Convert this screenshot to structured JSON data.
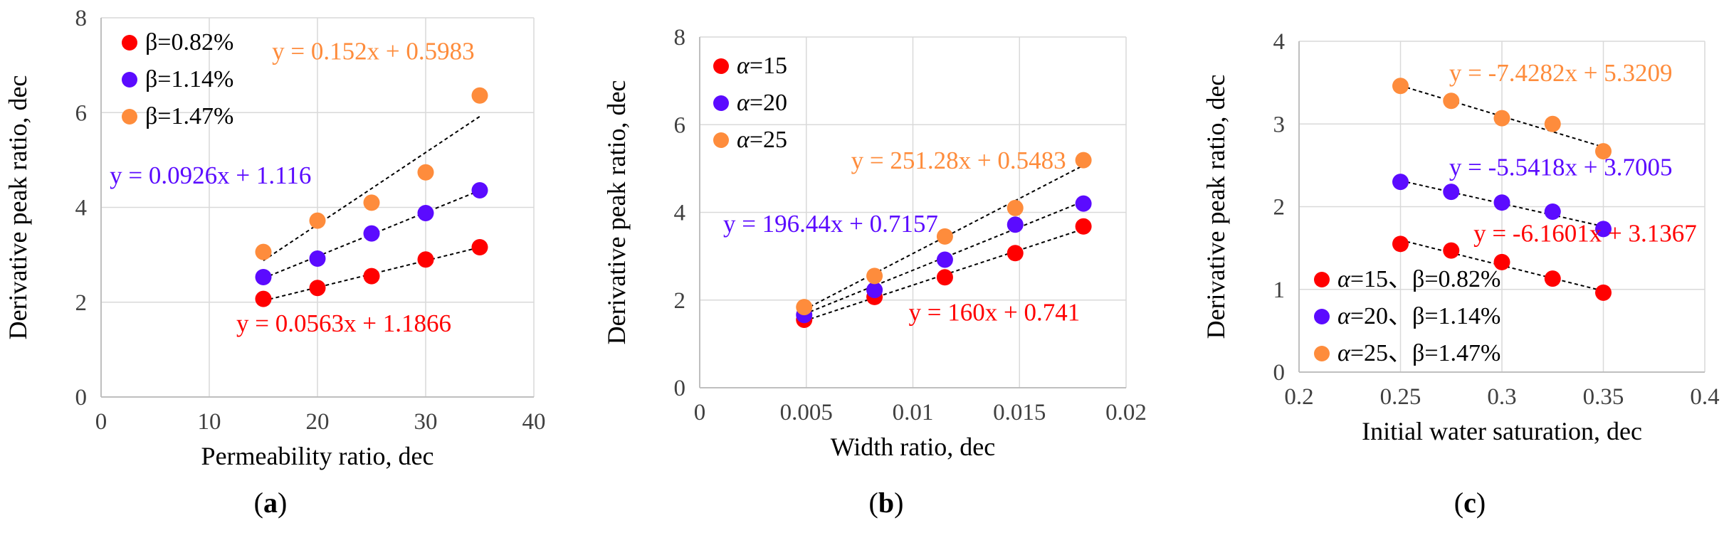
{
  "colors": {
    "red": "#ff0000",
    "blue": "#5b0bff",
    "orange": "#fe8c3c",
    "grid": "#d9d9d9",
    "axis": "#bfbfbf",
    "text": "#404040",
    "trend": "#000000"
  },
  "chart_data": [
    {
      "type": "scatter",
      "panel_label": "(a)",
      "panel_letter": "a",
      "xlabel": "Permeability ratio, dec",
      "ylabel": "Derivative peak ratio, dec",
      "xlim": [
        0,
        40
      ],
      "ylim": [
        0,
        8
      ],
      "xticks": [
        0,
        10,
        20,
        30,
        40
      ],
      "yticks": [
        0,
        2,
        4,
        6,
        8
      ],
      "xtick_labels": [
        "0",
        "10",
        "20",
        "30",
        "40"
      ],
      "ytick_labels": [
        "0",
        "2",
        "4",
        "6",
        "8"
      ],
      "grid": true,
      "legend_position": "top-left",
      "series": [
        {
          "name": "β=0.82%",
          "color": "red",
          "legend_prefix": "",
          "legend_suffix": "β=0.82%",
          "x": [
            15,
            20,
            25,
            30,
            35
          ],
          "y": [
            2.07,
            2.3,
            2.55,
            2.9,
            3.16
          ],
          "trendline": {
            "slope": 0.0563,
            "intercept": 1.1866
          },
          "equation": "y = 0.0563x + 1.1866",
          "equation_anchor": [
            12.5,
            1.38
          ]
        },
        {
          "name": "β=1.14%",
          "color": "blue",
          "legend_prefix": "",
          "legend_suffix": "β=1.14%",
          "x": [
            15,
            20,
            25,
            30,
            35
          ],
          "y": [
            2.53,
            2.92,
            3.45,
            3.88,
            4.36
          ],
          "trendline": {
            "slope": 0.0926,
            "intercept": 1.116
          },
          "equation": "y = 0.0926x + 1.116",
          "equation_anchor": [
            0.8,
            4.5
          ]
        },
        {
          "name": "β=1.47%",
          "color": "orange",
          "legend_prefix": "",
          "legend_suffix": "β=1.47%",
          "x": [
            15,
            20,
            25,
            30,
            35
          ],
          "y": [
            3.06,
            3.72,
            4.1,
            4.74,
            6.36
          ],
          "trendline": {
            "slope": 0.152,
            "intercept": 0.5983
          },
          "equation": "y = 0.152x + 0.5983",
          "equation_anchor": [
            15.8,
            7.12
          ]
        }
      ]
    },
    {
      "type": "scatter",
      "panel_label": "(b)",
      "panel_letter": "b",
      "xlabel": "Width ratio, dec",
      "ylabel": "Derivative peak ratio, dec",
      "xlim": [
        0,
        0.02
      ],
      "ylim": [
        0,
        8
      ],
      "xticks": [
        0,
        0.005,
        0.01,
        0.015,
        0.02
      ],
      "yticks": [
        0,
        2,
        4,
        6,
        8
      ],
      "xtick_labels": [
        "0",
        "0.005",
        "0.01",
        "0.015",
        "0.02"
      ],
      "ytick_labels": [
        "0",
        "2",
        "4",
        "6",
        "8"
      ],
      "grid": true,
      "legend_position": "top-left",
      "series": [
        {
          "name": "α=15",
          "color": "red",
          "legend_prefix": "α",
          "legend_suffix": "=15",
          "x": [
            0.0049,
            0.0082,
            0.0115,
            0.0148,
            0.018
          ],
          "y": [
            1.55,
            2.07,
            2.52,
            3.07,
            3.68
          ],
          "trendline": {
            "slope": 160,
            "intercept": 0.741
          },
          "equation": "y = 160x + 0.741",
          "equation_anchor": [
            0.0098,
            1.53
          ]
        },
        {
          "name": "α=20",
          "color": "blue",
          "legend_prefix": "α",
          "legend_suffix": "=20",
          "x": [
            0.0049,
            0.0082,
            0.0115,
            0.0148,
            0.018
          ],
          "y": [
            1.66,
            2.23,
            2.92,
            3.72,
            4.2
          ],
          "trendline": {
            "slope": 196.44,
            "intercept": 0.7157
          },
          "equation": "y = 196.44x + 0.7157",
          "equation_anchor": [
            0.0011,
            3.55
          ]
        },
        {
          "name": "α=25",
          "color": "orange",
          "legend_prefix": "α",
          "legend_suffix": "=25",
          "x": [
            0.0049,
            0.0082,
            0.0115,
            0.0148,
            0.018
          ],
          "y": [
            1.84,
            2.55,
            3.45,
            4.1,
            5.19
          ],
          "trendline": {
            "slope": 251.28,
            "intercept": 0.5483
          },
          "equation": "y = 251.28x + 0.5483",
          "equation_anchor": [
            0.0071,
            5.0
          ]
        }
      ]
    },
    {
      "type": "scatter",
      "panel_label": "(c)",
      "panel_letter": "c",
      "xlabel": "Initial water saturation, dec",
      "ylabel": "Derivative peak ratio, dec",
      "xlim": [
        0.2,
        0.4
      ],
      "ylim": [
        0,
        4
      ],
      "xticks": [
        0.2,
        0.25,
        0.3,
        0.35,
        0.4
      ],
      "yticks": [
        0,
        1,
        2,
        3,
        4
      ],
      "xtick_labels": [
        "0.2",
        "0.25",
        "0.3",
        "0.35",
        "0.4"
      ],
      "ytick_labels": [
        "0",
        "1",
        "2",
        "3",
        "4"
      ],
      "grid": true,
      "legend_position": "bottom-left",
      "series": [
        {
          "name": "α=15、β=0.82%",
          "color": "red",
          "legend_prefix": "α",
          "legend_suffix": "=15、β=0.82%",
          "x": [
            0.25,
            0.275,
            0.3,
            0.325,
            0.35
          ],
          "y": [
            1.55,
            1.47,
            1.33,
            1.13,
            0.96
          ],
          "trendline": {
            "slope": -6.1601,
            "intercept": 3.1367
          },
          "equation": "y = -6.1601x + 3.1367",
          "equation_anchor": [
            0.286,
            1.58
          ]
        },
        {
          "name": "α=20、β=1.14%",
          "color": "blue",
          "legend_prefix": "α",
          "legend_suffix": "=20、β=1.14%",
          "x": [
            0.25,
            0.275,
            0.3,
            0.325,
            0.35
          ],
          "y": [
            2.3,
            2.18,
            2.05,
            1.94,
            1.73
          ],
          "trendline": {
            "slope": -5.5418,
            "intercept": 3.7005
          },
          "equation": "y = -5.5418x + 3.7005",
          "equation_anchor": [
            0.274,
            2.38
          ]
        },
        {
          "name": "α=25、β=1.47%",
          "color": "orange",
          "legend_prefix": "α",
          "legend_suffix": "=25、β=1.47%",
          "x": [
            0.25,
            0.275,
            0.3,
            0.325,
            0.35
          ],
          "y": [
            3.46,
            3.28,
            3.07,
            3.0,
            2.67
          ],
          "trendline": {
            "slope": -7.4282,
            "intercept": 5.3209
          },
          "equation": "y = -7.4282x + 5.3209",
          "equation_anchor": [
            0.274,
            3.52
          ]
        }
      ]
    }
  ]
}
